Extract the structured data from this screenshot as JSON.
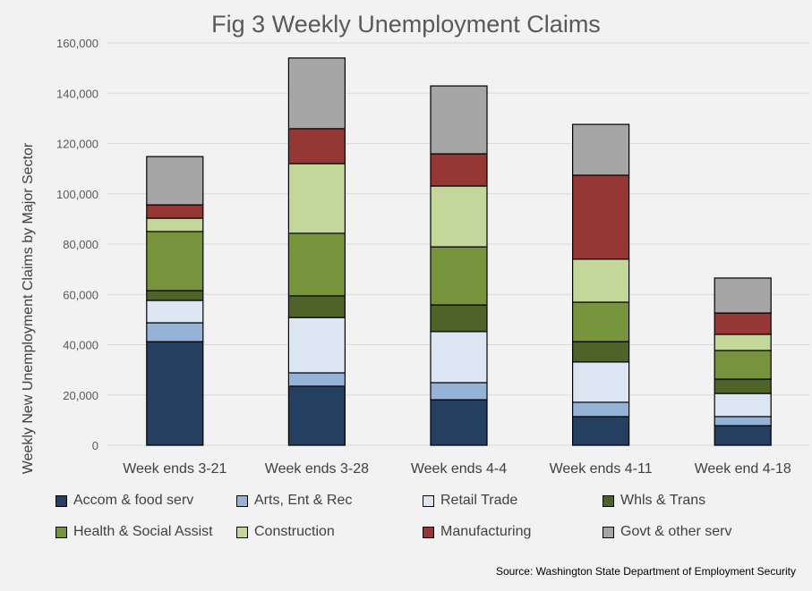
{
  "chart_data": {
    "type": "bar",
    "stacked": true,
    "title": "Fig 3 Weekly Unemployment Claims",
    "xlabel": "",
    "ylabel": "Weekly New Unemployment Claims by Major Sector",
    "ylim": [
      0,
      160000
    ],
    "yticks": [
      "0",
      "20,000",
      "40,000",
      "60,000",
      "80,000",
      "100,000",
      "120,000",
      "140,000",
      "160,000"
    ],
    "grid": true,
    "legend_position": "bottom",
    "categories": [
      "Week ends 3-21",
      "Week ends 3-28",
      "Week ends 4-4",
      "Week ends 4-11",
      "Week end 4-18"
    ],
    "series": [
      {
        "name": "Accom & food serv",
        "color": "#243f60",
        "values": [
          41200,
          23500,
          18100,
          11400,
          7800
        ]
      },
      {
        "name": "Arts, Ent & Rec",
        "color": "#95b3d7",
        "values": [
          7500,
          5300,
          6800,
          5700,
          3600
        ]
      },
      {
        "name": "Retail Trade",
        "color": "#dce6f2",
        "values": [
          8900,
          22000,
          20300,
          16000,
          9200
        ]
      },
      {
        "name": "Whls & Trans",
        "color": "#4f6228",
        "values": [
          3900,
          8600,
          10600,
          8100,
          5700
        ]
      },
      {
        "name": "Health & Social Assist",
        "color": "#77933c",
        "values": [
          23500,
          24900,
          23100,
          15700,
          11400
        ]
      },
      {
        "name": "Construction",
        "color": "#c4d79b",
        "values": [
          5300,
          27700,
          24200,
          17100,
          6400
        ]
      },
      {
        "name": "Manufacturing",
        "color": "#953735",
        "values": [
          5300,
          13900,
          12800,
          33400,
          8500
        ]
      },
      {
        "name": "Govt & other serv",
        "color": "#a6a6a6",
        "values": [
          19200,
          28100,
          27000,
          20200,
          13900
        ]
      }
    ],
    "source": "Source: Washington State Department of Employment Security"
  }
}
